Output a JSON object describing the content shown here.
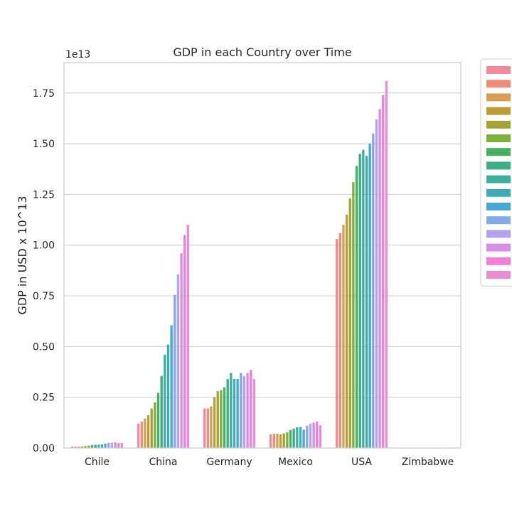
{
  "chart_data": {
    "type": "bar",
    "title": "GDP in each Country over Time",
    "xlabel": "",
    "ylabel": "GDP in USD x 10^13",
    "y_offset_label": "1e13",
    "ylim": [
      0,
      1.9
    ],
    "yticks": [
      "0.00",
      "0.25",
      "0.50",
      "0.75",
      "1.00",
      "1.25",
      "1.50",
      "1.75"
    ],
    "grid": true,
    "legend_placement": "right-outside",
    "categories": [
      "Chile",
      "China",
      "Germany",
      "Mexico",
      "USA",
      "Zimbabwe"
    ],
    "series_colors": [
      "#f2899d",
      "#ee8c75",
      "#d99e55",
      "#bc9e38",
      "#a3a339",
      "#7eb03c",
      "#45b05f",
      "#3eae86",
      "#3fb09f",
      "#40abb3",
      "#47a8d2",
      "#85aaea",
      "#b1a3ee",
      "#d68fe8",
      "#f27fd7",
      "#eb8bd1"
    ],
    "series": [
      {
        "values": [
          0.0078,
          0.12,
          0.195,
          0.068,
          1.03,
          0.00067
        ]
      },
      {
        "values": [
          0.007,
          0.13,
          0.195,
          0.071,
          1.06,
          0.00066
        ]
      },
      {
        "values": [
          0.0069,
          0.145,
          0.205,
          0.07,
          1.1,
          0.00067
        ]
      },
      {
        "values": [
          0.0076,
          0.162,
          0.25,
          0.067,
          1.15,
          0.00063
        ]
      },
      {
        "values": [
          0.01,
          0.195,
          0.28,
          0.072,
          1.23,
          0.00059
        ]
      },
      {
        "values": [
          0.012,
          0.225,
          0.285,
          0.077,
          1.31,
          0.00056
        ]
      },
      {
        "values": [
          0.0145,
          0.272,
          0.3,
          0.089,
          1.39,
          0.00054
        ]
      },
      {
        "values": [
          0.0155,
          0.355,
          0.34,
          0.096,
          1.45,
          0.00053
        ]
      },
      {
        "values": [
          0.017,
          0.46,
          0.37,
          0.103,
          1.47,
          0.00044
        ]
      },
      {
        "values": [
          0.0175,
          0.51,
          0.34,
          0.104,
          1.44,
          0.0005
        ]
      },
      {
        "values": [
          0.022,
          0.605,
          0.34,
          0.09,
          1.5,
          0.001
        ]
      },
      {
        "values": [
          0.025,
          0.755,
          0.37,
          0.11,
          1.55,
          0.0014
        ]
      },
      {
        "values": [
          0.0265,
          0.855,
          0.355,
          0.12,
          1.62,
          0.0016
        ]
      },
      {
        "values": [
          0.028,
          0.96,
          0.37,
          0.125,
          1.67,
          0.00175
        ]
      },
      {
        "values": [
          0.024,
          1.05,
          0.385,
          0.13,
          1.74,
          0.0018
        ]
      },
      {
        "values": [
          0.0245,
          1.1,
          0.34,
          0.112,
          1.81,
          0.00185
        ]
      }
    ]
  }
}
